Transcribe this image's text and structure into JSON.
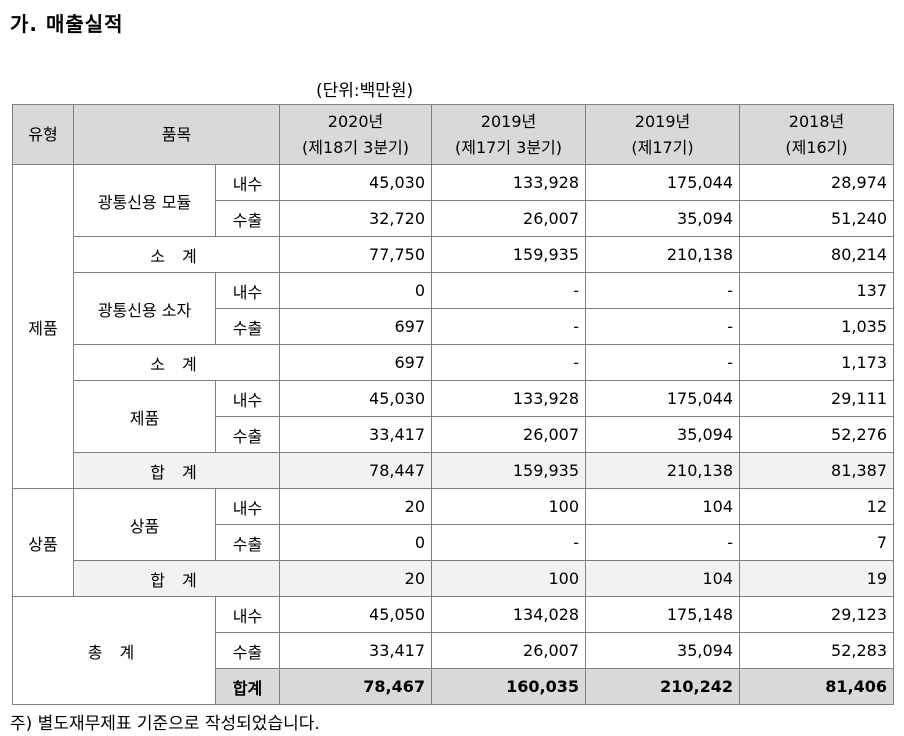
{
  "title": "가. 매출실적",
  "unit": "(단위:백만원)",
  "headers": {
    "type": "유형",
    "item": "품목",
    "cols": [
      {
        "year": "2020년",
        "period": "(제18기 3분기)"
      },
      {
        "year": "2019년",
        "period": "(제17기 3분기)"
      },
      {
        "year": "2019년",
        "period": "(제17기)"
      },
      {
        "year": "2018년",
        "period": "(제16기)"
      }
    ]
  },
  "labels": {
    "product": "제품",
    "goods": "상품",
    "domestic": "내수",
    "export": "수출",
    "subtotal": "소 계",
    "total": "합 계",
    "grand_total": "총 계",
    "grand_sum": "합계",
    "module": "광통신용 모듈",
    "device": "광통신용 소자",
    "product_item": "제품",
    "goods_item": "상품"
  },
  "rows": {
    "module_dom": [
      "45,030",
      "133,928",
      "175,044",
      "28,974"
    ],
    "module_exp": [
      "32,720",
      "26,007",
      "35,094",
      "51,240"
    ],
    "module_sub": [
      "77,750",
      "159,935",
      "210,138",
      "80,214"
    ],
    "device_dom": [
      "0",
      "-",
      "-",
      "137"
    ],
    "device_exp": [
      "697",
      "-",
      "-",
      "1,035"
    ],
    "device_sub": [
      "697",
      "-",
      "-",
      "1,173"
    ],
    "product_dom": [
      "45,030",
      "133,928",
      "175,044",
      "29,111"
    ],
    "product_exp": [
      "33,417",
      "26,007",
      "35,094",
      "52,276"
    ],
    "product_total": [
      "78,447",
      "159,935",
      "210,138",
      "81,387"
    ],
    "goods_dom": [
      "20",
      "100",
      "104",
      "12"
    ],
    "goods_exp": [
      "0",
      "-",
      "-",
      "7"
    ],
    "goods_total": [
      "20",
      "100",
      "104",
      "19"
    ],
    "grand_dom": [
      "45,050",
      "134,028",
      "175,148",
      "29,123"
    ],
    "grand_exp": [
      "33,417",
      "26,007",
      "35,094",
      "52,283"
    ],
    "grand_sum": [
      "78,467",
      "160,035",
      "210,242",
      "81,406"
    ]
  },
  "footer": "주) 별도재무제표 기준으로 작성되었습니다."
}
